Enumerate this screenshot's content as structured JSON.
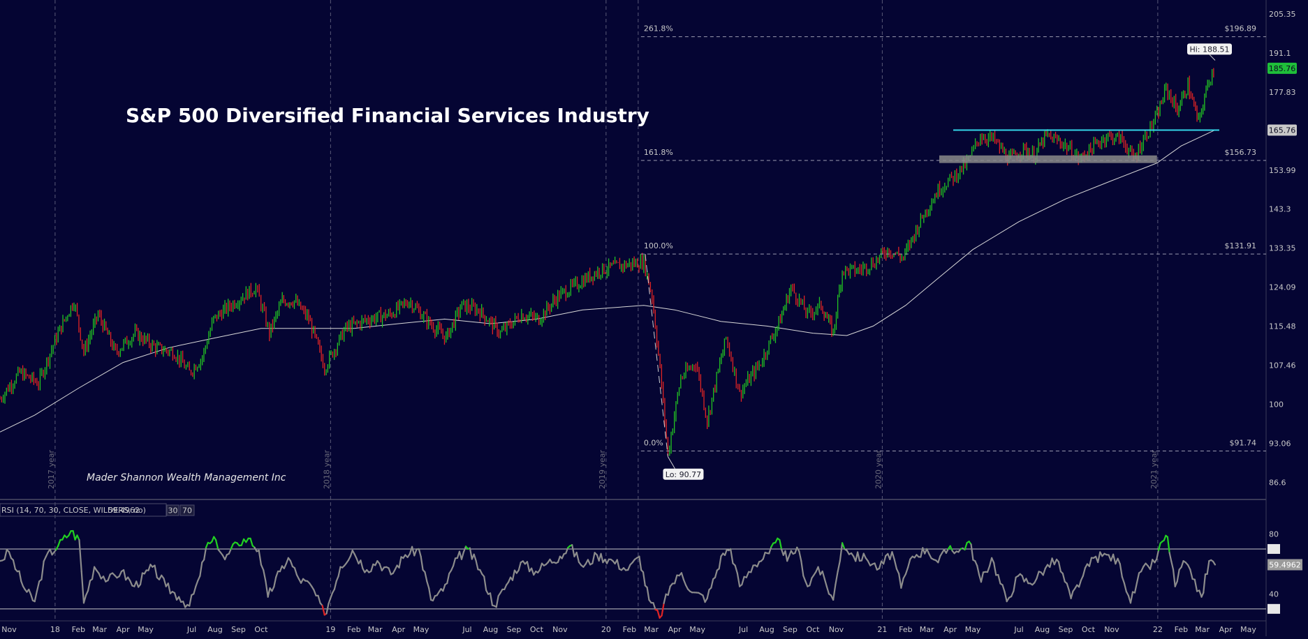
{
  "chart_data": [
    {
      "type": "candlestick",
      "title": "S&P 500 Diversified Financial Services Industry",
      "watermark": "Mader Shannon Wealth Management Inc",
      "y_axis_ticks": [
        205.35,
        191.1,
        177.83,
        165.76,
        153.99,
        143.3,
        133.35,
        124.09,
        115.48,
        107.46,
        100,
        93.06,
        86.6
      ],
      "ylim": [
        84,
        208
      ],
      "x_axis_labels": [
        "Nov",
        "18",
        "Feb",
        "Mar",
        "Apr",
        "May",
        "Jul",
        "Aug",
        "Sep",
        "Oct",
        "19",
        "Feb",
        "Mar",
        "Apr",
        "May",
        "Jul",
        "Aug",
        "Sep",
        "Oct",
        "Nov",
        "20",
        "Feb",
        "Mar",
        "Apr",
        "May",
        "Jul",
        "Aug",
        "Sep",
        "Oct",
        "Nov",
        "21",
        "Feb",
        "Mar",
        "Apr",
        "May",
        "Jul",
        "Aug",
        "Sep",
        "Oct",
        "Nov",
        "22",
        "Feb",
        "Mar",
        "Apr",
        "May"
      ],
      "year_markers": [
        "2017 year",
        "2018 year",
        "2019 year",
        "2020 year",
        "2021 year"
      ],
      "price_badges": [
        {
          "label": "185.76",
          "value": 185.76,
          "color": "#1fbf3a"
        },
        {
          "label": "165.76",
          "value": 165.76,
          "color": "#c8c8c8"
        }
      ],
      "fibonacci": [
        {
          "level": "261.8%",
          "price_label": "$196.89",
          "value": 196.89
        },
        {
          "level": "161.8%",
          "price_label": "$156.73",
          "value": 156.73
        },
        {
          "level": "100.0%",
          "price_label": "$131.91",
          "value": 131.91
        },
        {
          "level": "0.0%",
          "price_label": "$91.74",
          "value": 91.74
        }
      ],
      "callouts": [
        {
          "text": "Hi: 188.51",
          "value": 188.51
        },
        {
          "text": "Lo: 90.77",
          "value": 90.77
        }
      ],
      "resistance_line": {
        "value": 165.76,
        "color": "#33d6e8"
      },
      "support_zone": {
        "low": 156.0,
        "high": 158.2,
        "color": "#8a8a8a"
      },
      "series": [
        {
          "name": "price",
          "points": [
            [
              "2017-10-20",
              101
            ],
            [
              "2017-11-15",
              106
            ],
            [
              "2017-12-10",
              104
            ],
            [
              "2018-01-05",
              114
            ],
            [
              "2018-01-26",
              121
            ],
            [
              "2018-02-08",
              110
            ],
            [
              "2018-02-27",
              118
            ],
            [
              "2018-03-22",
              110
            ],
            [
              "2018-04-17",
              114
            ],
            [
              "2018-05-14",
              111
            ],
            [
              "2018-06-08",
              110
            ],
            [
              "2018-06-28",
              106
            ],
            [
              "2018-07-15",
              109
            ],
            [
              "2018-07-30",
              117
            ],
            [
              "2018-08-29",
              121
            ],
            [
              "2018-09-24",
              124
            ],
            [
              "2018-10-12",
              114
            ],
            [
              "2018-10-29",
              121
            ],
            [
              "2018-11-14",
              121
            ],
            [
              "2018-12-03",
              117
            ],
            [
              "2018-12-24",
              107
            ],
            [
              "2019-01-21",
              115
            ],
            [
              "2019-02-20",
              117
            ],
            [
              "2019-03-21",
              118
            ],
            [
              "2019-04-15",
              121
            ],
            [
              "2019-05-13",
              116
            ],
            [
              "2019-06-03",
              113
            ],
            [
              "2019-06-24",
              120
            ],
            [
              "2019-07-16",
              119
            ],
            [
              "2019-08-14",
              114
            ],
            [
              "2019-09-11",
              118
            ],
            [
              "2019-10-04",
              117
            ],
            [
              "2019-10-29",
              122
            ],
            [
              "2019-11-26",
              125
            ],
            [
              "2019-12-23",
              128
            ],
            [
              "2020-01-17",
              129
            ],
            [
              "2020-02-20",
              130
            ],
            [
              "2020-03-02",
              122
            ],
            [
              "2020-03-23",
              91
            ],
            [
              "2020-04-09",
              105
            ],
            [
              "2020-04-29",
              108
            ],
            [
              "2020-05-14",
              97
            ],
            [
              "2020-06-08",
              113
            ],
            [
              "2020-06-26",
              102
            ],
            [
              "2020-07-24",
              108
            ],
            [
              "2020-08-19",
              117
            ],
            [
              "2020-09-02",
              124
            ],
            [
              "2020-09-24",
              118
            ],
            [
              "2020-10-12",
              120
            ],
            [
              "2020-10-28",
              114
            ],
            [
              "2020-11-09",
              128
            ],
            [
              "2020-11-30",
              128
            ],
            [
              "2020-12-22",
              130
            ],
            [
              "2021-01-08",
              133
            ],
            [
              "2021-01-29",
              131
            ],
            [
              "2021-02-25",
              142
            ],
            [
              "2021-03-18",
              149
            ],
            [
              "2021-04-05",
              152
            ],
            [
              "2021-04-23",
              156
            ],
            [
              "2021-05-11",
              164
            ],
            [
              "2021-05-28",
              163
            ],
            [
              "2021-06-18",
              157
            ],
            [
              "2021-07-07",
              160
            ],
            [
              "2021-07-21",
              158
            ],
            [
              "2021-08-06",
              164
            ],
            [
              "2021-08-27",
              162
            ],
            [
              "2021-09-20",
              157
            ],
            [
              "2021-10-04",
              160
            ],
            [
              "2021-10-25",
              164
            ],
            [
              "2021-11-15",
              163
            ],
            [
              "2021-11-30",
              157
            ],
            [
              "2021-12-13",
              163
            ],
            [
              "2021-12-31",
              170
            ],
            [
              "2022-01-12",
              179
            ],
            [
              "2022-01-27",
              172
            ],
            [
              "2022-02-10",
              180
            ],
            [
              "2022-02-24",
              168
            ],
            [
              "2022-03-10",
              182
            ],
            [
              "2022-03-18",
              186
            ]
          ]
        },
        {
          "name": "moving average",
          "points": [
            [
              "2017-10-20",
              95
            ],
            [
              "2017-12-05",
              98
            ],
            [
              "2018-02-01",
              103
            ],
            [
              "2018-04-01",
              108
            ],
            [
              "2018-06-01",
              111
            ],
            [
              "2018-08-01",
              113
            ],
            [
              "2018-10-01",
              115
            ],
            [
              "2018-12-01",
              115
            ],
            [
              "2019-02-01",
              115
            ],
            [
              "2019-04-01",
              116
            ],
            [
              "2019-06-01",
              117
            ],
            [
              "2019-08-01",
              116
            ],
            [
              "2019-10-01",
              117
            ],
            [
              "2019-12-01",
              119
            ],
            [
              "2020-02-20",
              120
            ],
            [
              "2020-04-01",
              119
            ],
            [
              "2020-06-01",
              116.5
            ],
            [
              "2020-08-01",
              115.5
            ],
            [
              "2020-10-01",
              114
            ],
            [
              "2020-11-15",
              113.5
            ],
            [
              "2020-12-20",
              115.5
            ],
            [
              "2021-02-01",
              120
            ],
            [
              "2021-03-15",
              126
            ],
            [
              "2021-05-01",
              133
            ],
            [
              "2021-07-01",
              140
            ],
            [
              "2021-09-01",
              146
            ],
            [
              "2021-11-01",
              151
            ],
            [
              "2021-12-31",
              156
            ],
            [
              "2022-02-01",
              161
            ],
            [
              "2022-03-18",
              165.8
            ]
          ]
        }
      ]
    },
    {
      "type": "line",
      "indicator_label": "RSI (14, 70, 30, CLOSE, WILDERS, no)",
      "indicator_value": "59.4962",
      "overbought": "70",
      "oversold": "30",
      "y_axis_ticks": [
        80,
        70,
        59.4962,
        40,
        30
      ],
      "ylim": [
        22,
        90
      ],
      "value_badge": "59.4962",
      "series": [
        {
          "name": "RSI",
          "points": [
            [
              "2017-10-20",
              62
            ],
            [
              "2017-11-01",
              68
            ],
            [
              "2017-11-12",
              55
            ],
            [
              "2017-11-22",
              43
            ],
            [
              "2017-12-05",
              35
            ],
            [
              "2017-12-20",
              65
            ],
            [
              "2018-01-05",
              72
            ],
            [
              "2018-01-22",
              82
            ],
            [
              "2018-02-02",
              76
            ],
            [
              "2018-02-08",
              34
            ],
            [
              "2018-02-22",
              58
            ],
            [
              "2018-03-12",
              49
            ],
            [
              "2018-03-30",
              55
            ],
            [
              "2018-04-16",
              45
            ],
            [
              "2018-05-10",
              58
            ],
            [
              "2018-05-28",
              45
            ],
            [
              "2018-06-14",
              38
            ],
            [
              "2018-06-28",
              32
            ],
            [
              "2018-07-12",
              52
            ],
            [
              "2018-07-20",
              71
            ],
            [
              "2018-08-02",
              76
            ],
            [
              "2018-08-14",
              63
            ],
            [
              "2018-08-30",
              74
            ],
            [
              "2018-09-14",
              77
            ],
            [
              "2018-09-28",
              69
            ],
            [
              "2018-10-10",
              38
            ],
            [
              "2018-10-26",
              55
            ],
            [
              "2018-11-06",
              64
            ],
            [
              "2018-11-20",
              50
            ],
            [
              "2018-12-07",
              45
            ],
            [
              "2018-12-24",
              26
            ],
            [
              "2019-01-14",
              58
            ],
            [
              "2019-01-30",
              69
            ],
            [
              "2019-02-18",
              56
            ],
            [
              "2019-03-04",
              62
            ],
            [
              "2019-03-22",
              53
            ],
            [
              "2019-04-10",
              66
            ],
            [
              "2019-04-28",
              70
            ],
            [
              "2019-05-14",
              36
            ],
            [
              "2019-05-30",
              42
            ],
            [
              "2019-06-18",
              64
            ],
            [
              "2019-07-02",
              70
            ],
            [
              "2019-07-18",
              56
            ],
            [
              "2019-08-06",
              32
            ],
            [
              "2019-08-22",
              46
            ],
            [
              "2019-09-10",
              61
            ],
            [
              "2019-09-30",
              55
            ],
            [
              "2019-10-16",
              61
            ],
            [
              "2019-11-01",
              65
            ],
            [
              "2019-11-14",
              72
            ],
            [
              "2019-12-02",
              58
            ],
            [
              "2019-12-20",
              66
            ],
            [
              "2020-01-10",
              62
            ],
            [
              "2020-01-30",
              56
            ],
            [
              "2020-02-14",
              65
            ],
            [
              "2020-02-27",
              36
            ],
            [
              "2020-03-12",
              24
            ],
            [
              "2020-03-26",
              45
            ],
            [
              "2020-04-10",
              54
            ],
            [
              "2020-04-24",
              41
            ],
            [
              "2020-05-14",
              37
            ],
            [
              "2020-06-04",
              67
            ],
            [
              "2020-06-14",
              70
            ],
            [
              "2020-06-26",
              45
            ],
            [
              "2020-07-14",
              59
            ],
            [
              "2020-08-04",
              67
            ],
            [
              "2020-08-18",
              76
            ],
            [
              "2020-08-28",
              62
            ],
            [
              "2020-09-10",
              71
            ],
            [
              "2020-09-24",
              45
            ],
            [
              "2020-10-08",
              58
            ],
            [
              "2020-10-28",
              36
            ],
            [
              "2020-11-09",
              74
            ],
            [
              "2020-11-24",
              65
            ],
            [
              "2020-12-10",
              64
            ],
            [
              "2020-12-28",
              57
            ],
            [
              "2021-01-14",
              68
            ],
            [
              "2021-01-26",
              44
            ],
            [
              "2021-02-10",
              65
            ],
            [
              "2021-03-01",
              70
            ],
            [
              "2021-03-16",
              61
            ],
            [
              "2021-04-01",
              72
            ],
            [
              "2021-04-12",
              68
            ],
            [
              "2021-04-26",
              75
            ],
            [
              "2021-05-12",
              48
            ],
            [
              "2021-05-26",
              64
            ],
            [
              "2021-06-15",
              35
            ],
            [
              "2021-06-30",
              52
            ],
            [
              "2021-07-16",
              47
            ],
            [
              "2021-08-05",
              57
            ],
            [
              "2021-08-20",
              63
            ],
            [
              "2021-09-08",
              37
            ],
            [
              "2021-09-24",
              52
            ],
            [
              "2021-10-08",
              64
            ],
            [
              "2021-10-28",
              66
            ],
            [
              "2021-11-12",
              60
            ],
            [
              "2021-11-26",
              34
            ],
            [
              "2021-12-10",
              55
            ],
            [
              "2021-12-28",
              61
            ],
            [
              "2022-01-07",
              75
            ],
            [
              "2022-01-14",
              78
            ],
            [
              "2022-01-24",
              45
            ],
            [
              "2022-02-04",
              62
            ],
            [
              "2022-02-16",
              50
            ],
            [
              "2022-02-28",
              38
            ],
            [
              "2022-03-10",
              62
            ],
            [
              "2022-03-18",
              59.5
            ]
          ]
        }
      ]
    }
  ]
}
